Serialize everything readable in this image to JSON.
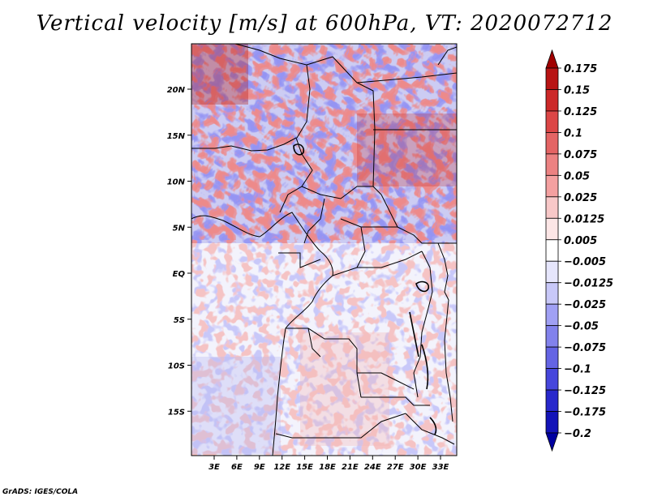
{
  "title": "Vertical velocity [m/s] at 600hPa, VT: 2020072712",
  "credit": "GrADS: IGES/COLA",
  "map": {
    "lon_ticks": [
      "3E",
      "6E",
      "9E",
      "12E",
      "15E",
      "18E",
      "21E",
      "24E",
      "27E",
      "30E",
      "33E"
    ],
    "lat_ticks": [
      "20N",
      "15N",
      "10N",
      "5N",
      "EQ",
      "5S",
      "10S",
      "15S"
    ],
    "lon_values": [
      3,
      6,
      9,
      12,
      15,
      18,
      21,
      24,
      27,
      30,
      33
    ],
    "lat_values": [
      20,
      15,
      10,
      5,
      0,
      -5,
      -10,
      -15
    ]
  },
  "colorbar": {
    "labels": [
      "0.175",
      "0.15",
      "0.125",
      "0.1",
      "0.075",
      "0.05",
      "0.025",
      "0.0125",
      "0.005",
      "−0.005",
      "−0.0125",
      "−0.025",
      "−0.05",
      "−0.075",
      "−0.1",
      "−0.125",
      "−0.175",
      "−0.2"
    ],
    "colors": [
      "#a00000",
      "#b81414",
      "#cc2828",
      "#dc4646",
      "#e46464",
      "#ec8282",
      "#f4a0a0",
      "#f8c8c8",
      "#fce6e6",
      "#ffffff",
      "#e6e6fc",
      "#c8c8f8",
      "#a0a0f4",
      "#8282ec",
      "#6464e4",
      "#4646dc",
      "#2828cc",
      "#1414b8",
      "#0000a0"
    ]
  }
}
